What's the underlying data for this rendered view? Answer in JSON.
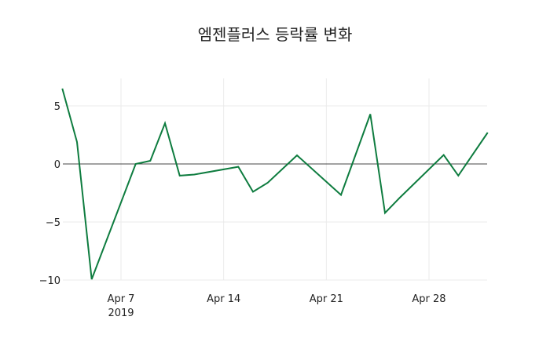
{
  "chart_data": {
    "type": "line",
    "title": "엠젠플러스 등락률 변화",
    "xlabel": "",
    "ylabel": "",
    "x": [
      "2019-04-03",
      "2019-04-04",
      "2019-04-05",
      "2019-04-08",
      "2019-04-09",
      "2019-04-10",
      "2019-04-11",
      "2019-04-12",
      "2019-04-15",
      "2019-04-16",
      "2019-04-17",
      "2019-04-19",
      "2019-04-22",
      "2019-04-24",
      "2019-04-25",
      "2019-04-26",
      "2019-04-29",
      "2019-04-30",
      "2019-05-02"
    ],
    "series": [
      {
        "name": "등락률",
        "color": "#0e7c3f",
        "values": [
          6.49,
          1.89,
          -9.93,
          0.0,
          0.27,
          3.51,
          -1.01,
          -0.91,
          -0.24,
          -2.4,
          -1.62,
          0.74,
          -2.67,
          4.29,
          -4.22,
          -2.91,
          0.78,
          -1.01,
          2.7
        ]
      }
    ],
    "x_ticks": [
      {
        "label": "Apr 7",
        "sublabel": "2019",
        "date": "2019-04-07"
      },
      {
        "label": "Apr 14",
        "sublabel": "",
        "date": "2019-04-14"
      },
      {
        "label": "Apr 21",
        "sublabel": "",
        "date": "2019-04-21"
      },
      {
        "label": "Apr 28",
        "sublabel": "",
        "date": "2019-04-28"
      }
    ],
    "y_ticks": [
      5,
      0,
      -5,
      -10
    ],
    "y_tick_labels": [
      "5",
      "0",
      "−5",
      "−10"
    ],
    "ylim": [
      -10.2,
      7.3
    ],
    "grid": true,
    "zero_line": true,
    "legend": "none"
  }
}
